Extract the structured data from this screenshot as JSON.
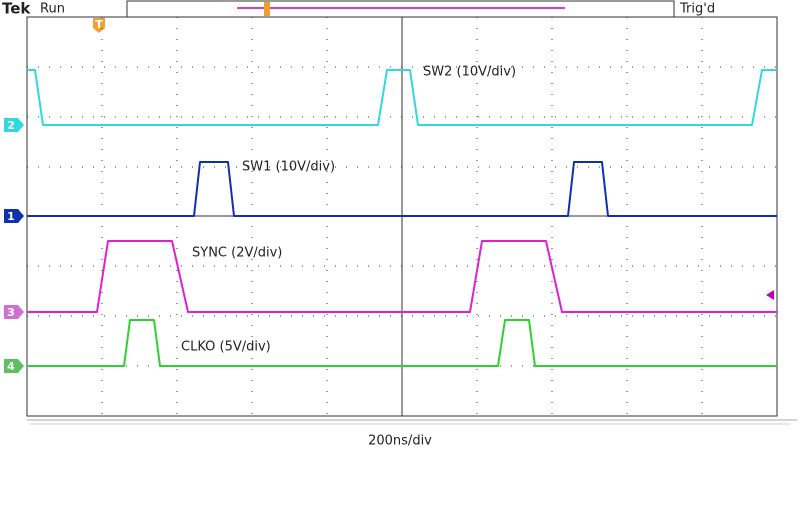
{
  "header": {
    "brand": "Tek",
    "status": "Run",
    "trigger_status": "Trig'd",
    "trigger_marker": "T"
  },
  "channels": [
    {
      "marker": "2",
      "label": "SW2 (10V/div)"
    },
    {
      "marker": "1",
      "label": "SW1 (10V/div)"
    },
    {
      "marker": "3",
      "label": "SYNC (2V/div)"
    },
    {
      "marker": "4",
      "label": "CLKO (5V/div)"
    }
  ],
  "footer": {
    "timebase": "200ns/div"
  }
}
